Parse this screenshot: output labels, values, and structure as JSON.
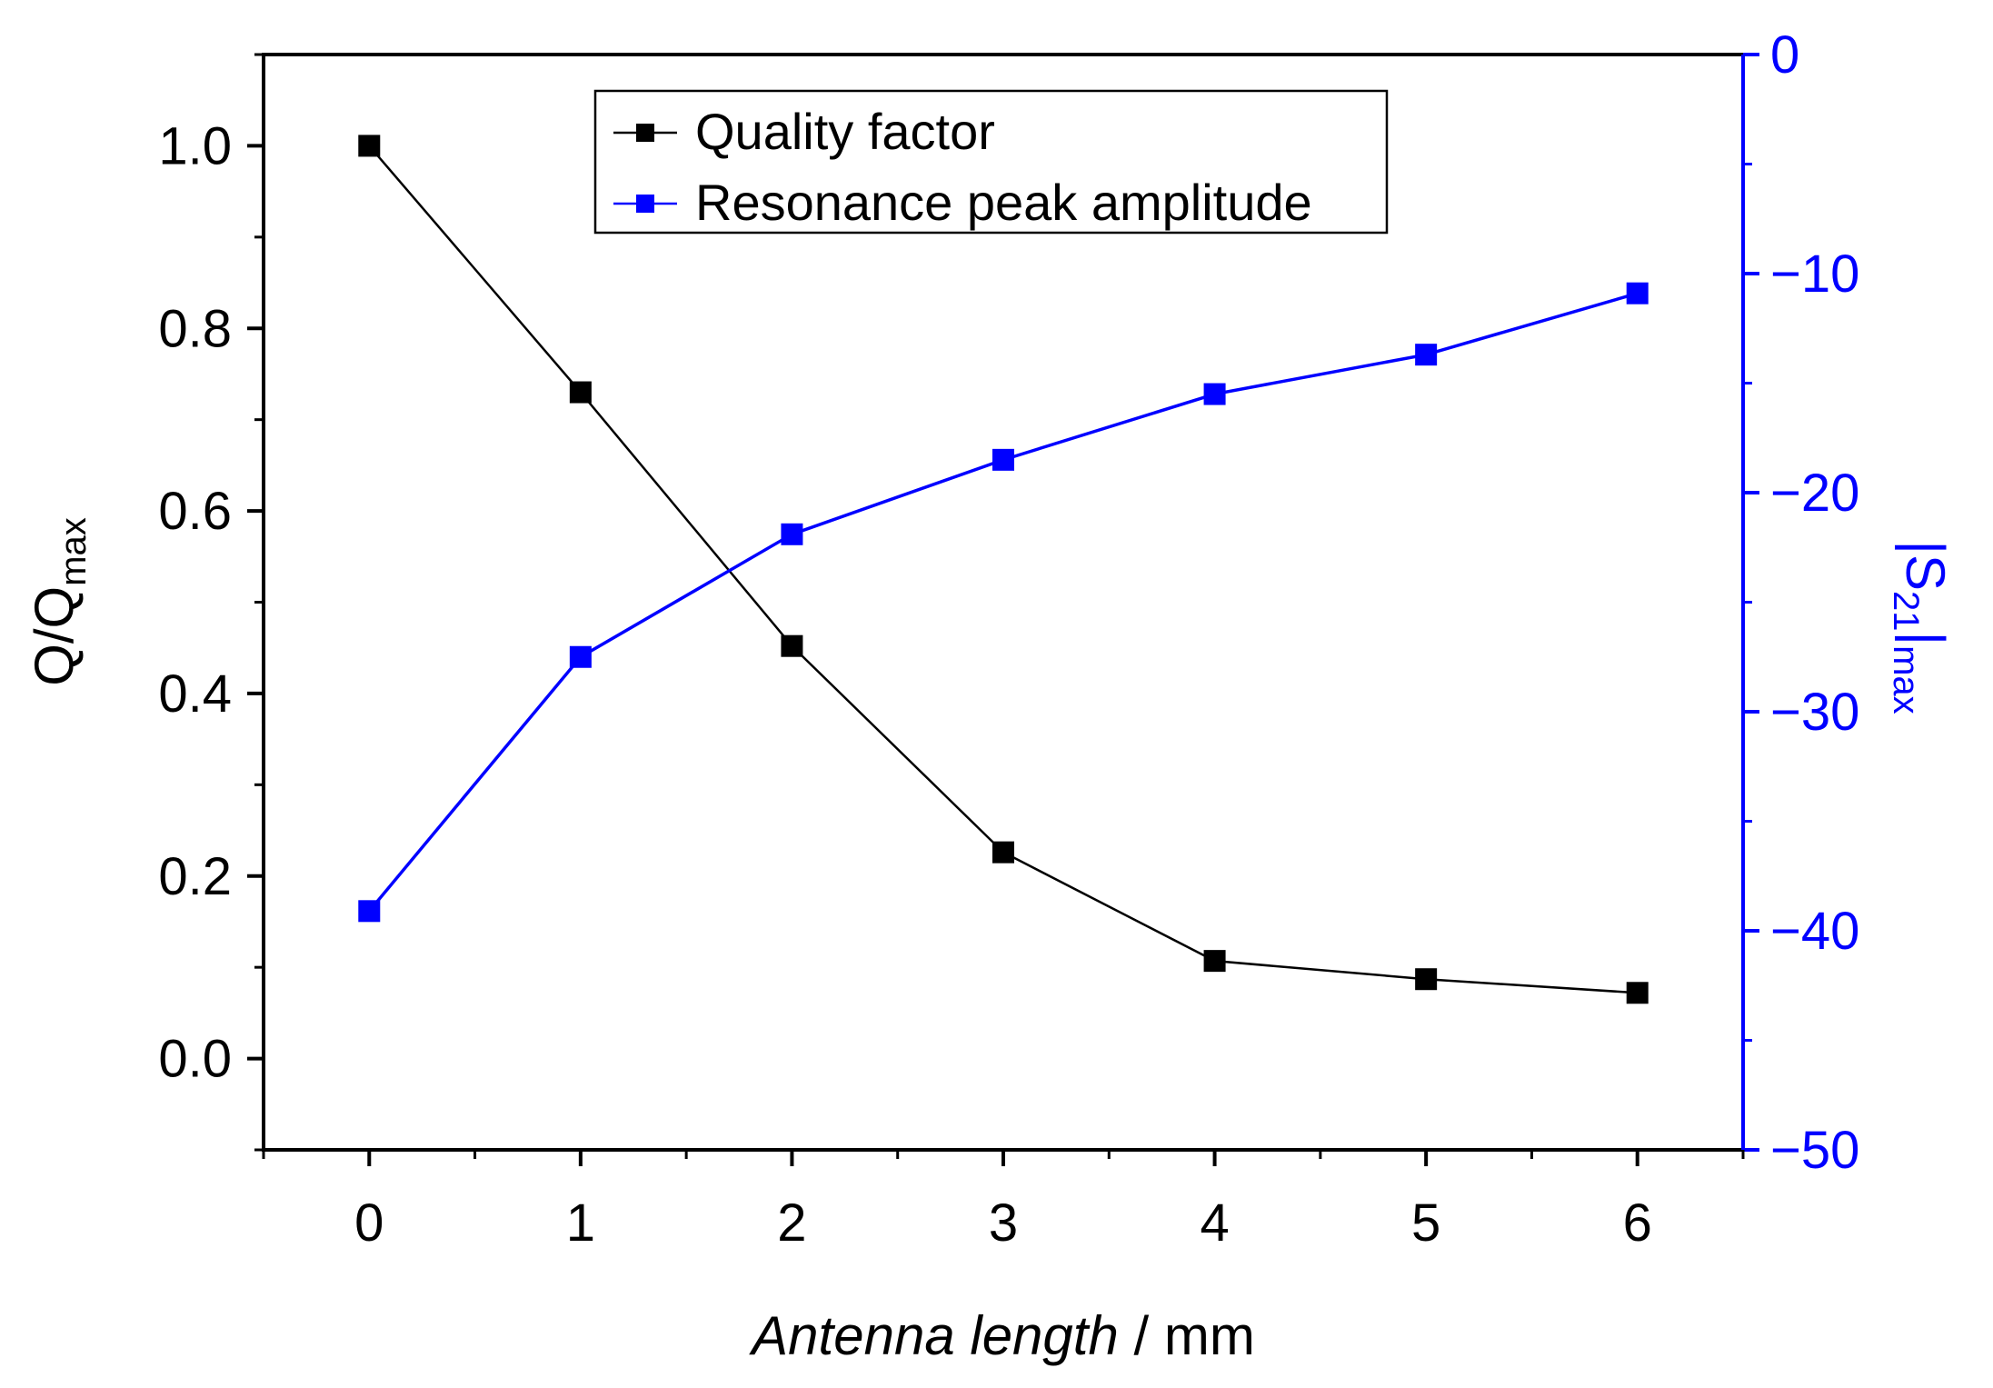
{
  "chart_data": {
    "type": "line",
    "x": [
      0,
      1,
      2,
      3,
      4,
      5,
      6
    ],
    "series": [
      {
        "name": "Quality factor",
        "axis": "left",
        "color": "#000000",
        "values": [
          1.0,
          0.73,
          0.452,
          0.226,
          0.107,
          0.087,
          0.072
        ]
      },
      {
        "name": "Resonance peak amplitude",
        "axis": "right",
        "color": "#0000ff",
        "values": [
          -39.1,
          -27.5,
          -21.9,
          -18.5,
          -15.5,
          -13.7,
          -10.9
        ]
      }
    ],
    "x_axis": {
      "title_italic": "Antenna length",
      "title_rest": " / mm",
      "range": [
        -0.5,
        6.5
      ],
      "ticks": [
        "0",
        "1",
        "2",
        "3",
        "4",
        "5",
        "6"
      ]
    },
    "y_left": {
      "title_main": "Q/Q",
      "title_sub": "max",
      "range": [
        -0.1,
        1.1
      ],
      "ticks": [
        "0.0",
        "0.2",
        "0.4",
        "0.6",
        "0.8",
        "1.0"
      ]
    },
    "y_right": {
      "title_main": "|S",
      "title_sub1": "21",
      "title_mid": "|",
      "title_sub2": "max",
      "range": [
        -50,
        0
      ],
      "ticks": [
        "-50",
        "-40",
        "-30",
        "-20",
        "-10",
        "0"
      ]
    },
    "legend": {
      "position": "top-center"
    },
    "grid": false
  }
}
